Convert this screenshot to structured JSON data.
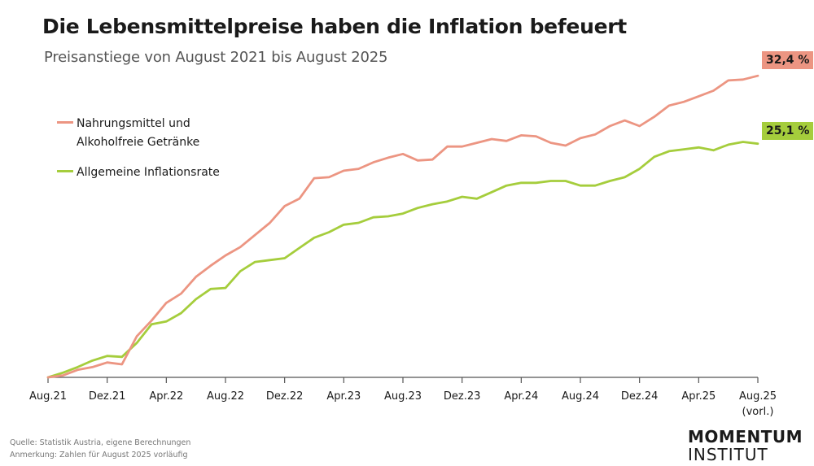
{
  "header": {
    "title": "Die Lebensmittelpreise haben die Inflation befeuert",
    "subtitle": "Preisanstiege von August 2021 bis August 2025"
  },
  "colors": {
    "food": "#ec9582",
    "general": "#a5cd3c",
    "axis": "#555555"
  },
  "legend": {
    "food_line1": "Nahrungsmittel und",
    "food_line2": "Alkoholfreie Getränke",
    "general": "Allgemeine Inflationsrate"
  },
  "end_labels": {
    "food": "32,4 %",
    "general": "25,1 %"
  },
  "footer": {
    "source": "Quelle: Statistik Austria, eigene Berechnungen",
    "note": "Anmerkung: Zahlen für August 2025 vorläufig",
    "logo_line1": "MOMENTUM",
    "logo_line2": "INSTITUT"
  },
  "chart_data": {
    "type": "line",
    "title": "Die Lebensmittelpreise haben die Inflation befeuert",
    "subtitle": "Preisanstiege von August 2021 bis August 2025",
    "xlabel": "",
    "ylabel": "",
    "x_tick_labels": [
      "Aug.21",
      "Dez.21",
      "Apr.22",
      "Aug.22",
      "Dez.22",
      "Apr.23",
      "Aug.23",
      "Dez.23",
      "Apr.24",
      "Aug.24",
      "Dez.24",
      "Apr.25",
      "Aug.25"
    ],
    "x_tick_sub": "(vorl.)",
    "n_points": 49,
    "ylim": [
      0,
      36
    ],
    "grid": false,
    "legend_position": "top-left",
    "series": [
      {
        "name": "Nahrungsmittel und Alkoholfreie Getränke",
        "color": "#ec9582",
        "values": [
          0.0,
          0.2,
          0.8,
          1.1,
          1.6,
          1.4,
          4.4,
          6.1,
          8.0,
          9.0,
          10.8,
          12.0,
          13.1,
          14.0,
          15.3,
          16.6,
          18.4,
          19.2,
          21.4,
          21.5,
          22.2,
          22.4,
          23.1,
          23.6,
          24.0,
          23.3,
          23.4,
          24.8,
          24.8,
          25.2,
          25.6,
          25.4,
          26.0,
          25.9,
          25.2,
          24.9,
          25.7,
          26.1,
          27.0,
          27.6,
          27.0,
          28.0,
          29.2,
          29.6,
          30.2,
          30.8,
          31.9,
          32.0,
          32.4
        ]
      },
      {
        "name": "Allgemeine Inflationsrate",
        "color": "#a5cd3c",
        "values": [
          0.0,
          0.5,
          1.1,
          1.8,
          2.3,
          2.2,
          3.7,
          5.7,
          6.0,
          6.9,
          8.4,
          9.5,
          9.6,
          11.4,
          12.4,
          12.6,
          12.8,
          13.9,
          15.0,
          15.6,
          16.4,
          16.6,
          17.2,
          17.3,
          17.6,
          18.2,
          18.6,
          18.9,
          19.4,
          19.2,
          19.9,
          20.6,
          20.9,
          20.9,
          21.1,
          21.1,
          20.6,
          20.6,
          21.1,
          21.5,
          22.4,
          23.7,
          24.3,
          24.5,
          24.7,
          24.4,
          25.0,
          25.3,
          25.1
        ]
      }
    ]
  }
}
